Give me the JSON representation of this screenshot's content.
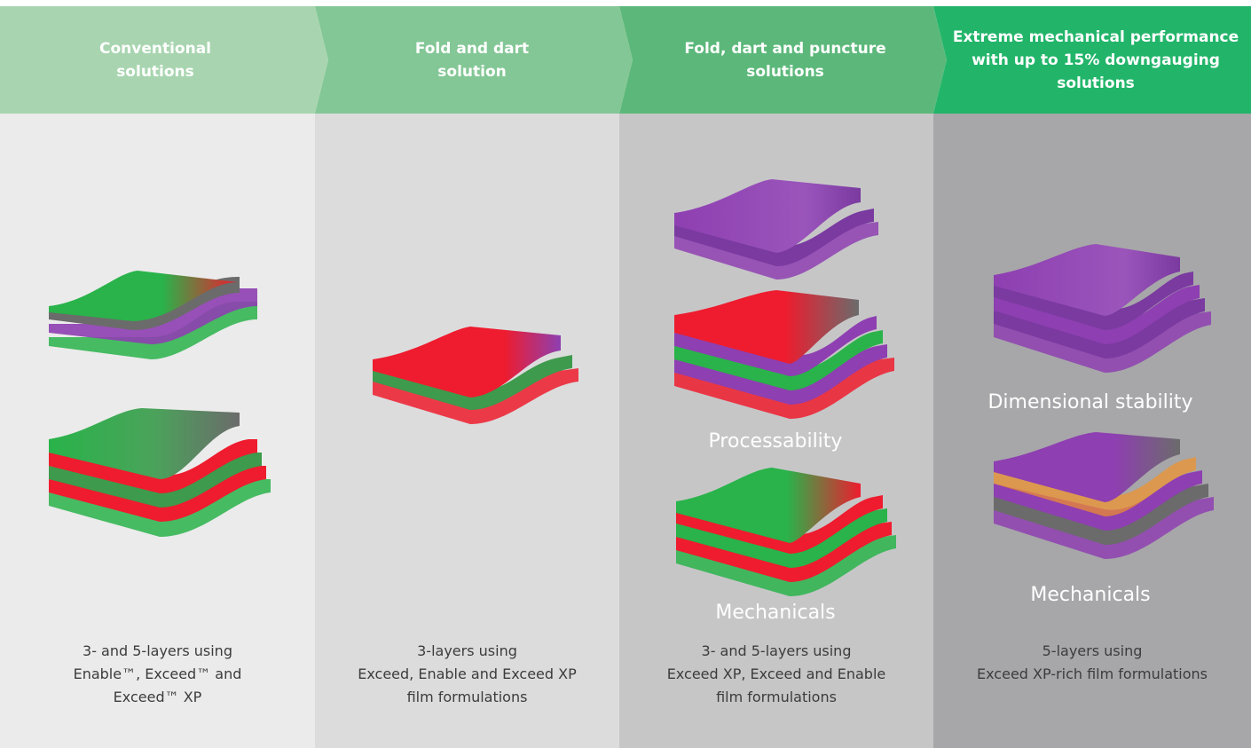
{
  "colors": {
    "header": [
      "#a8d5b0",
      "#84c796",
      "#5cb87a",
      "#22b56a"
    ],
    "panel": [
      "#ebebeb",
      "#dcdcdd",
      "#c6c6c7",
      "#a7a7a9"
    ],
    "green": "#29b34a",
    "red": "#ee1c2e",
    "purple": "#8e3fb1",
    "grey": "#6b6b6b",
    "orange": "#f2922a"
  },
  "columns": [
    {
      "header": "Conventional\nsolutions",
      "caption": "3- and 5-layers using\nEnable™, Exceed™ and\nExceed™ XP",
      "labels": []
    },
    {
      "header": "Fold and dart\nsolution",
      "caption": "3-layers using\nExceed, Enable and Exceed XP\nfilm formulations",
      "labels": []
    },
    {
      "header": "Fold, dart and puncture\nsolutions",
      "caption": "3- and 5-layers using\nExceed XP, Exceed and Enable\nfilm formulations",
      "labels": [
        "Processability",
        "Mechanicals"
      ]
    },
    {
      "header": "Extreme mechanical performance\nwith up to 15% downgauging\nsolutions",
      "caption": "5-layers using\nExceed XP-rich film formulations",
      "labels": [
        "Dimensional stability",
        "Mechanicals"
      ]
    }
  ]
}
